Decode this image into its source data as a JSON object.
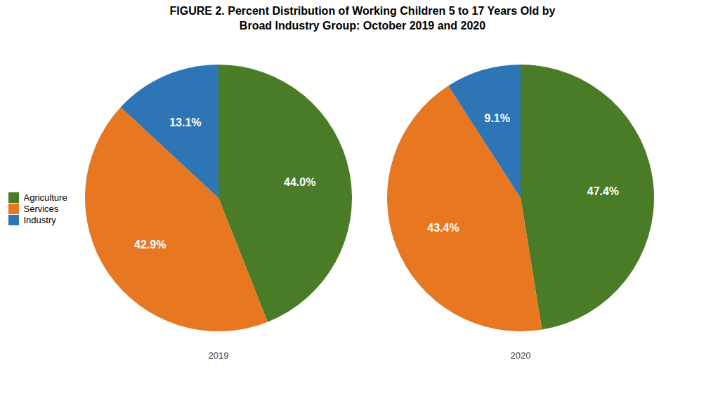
{
  "chart_data": {
    "type": "pie",
    "title": "FIGURE 2. Percent Distribution of Working Children 5 to 17 Years Old by\nBroad Industry Group: October 2019 and 2020",
    "categories": [
      "Agriculture",
      "Services",
      "Industry"
    ],
    "colors": [
      "#4a7c28",
      "#e87722",
      "#2e75b6"
    ],
    "series": [
      {
        "name": "2019",
        "values": [
          44.0,
          42.9,
          13.1
        ],
        "value_labels": [
          "44.0%",
          "42.9%",
          "13.1%"
        ]
      },
      {
        "name": "2020",
        "values": [
          47.4,
          43.4,
          9.1
        ],
        "value_labels": [
          "47.4%",
          "43.4%",
          "9.1%"
        ]
      }
    ],
    "data_labels": true,
    "legend": "left"
  }
}
